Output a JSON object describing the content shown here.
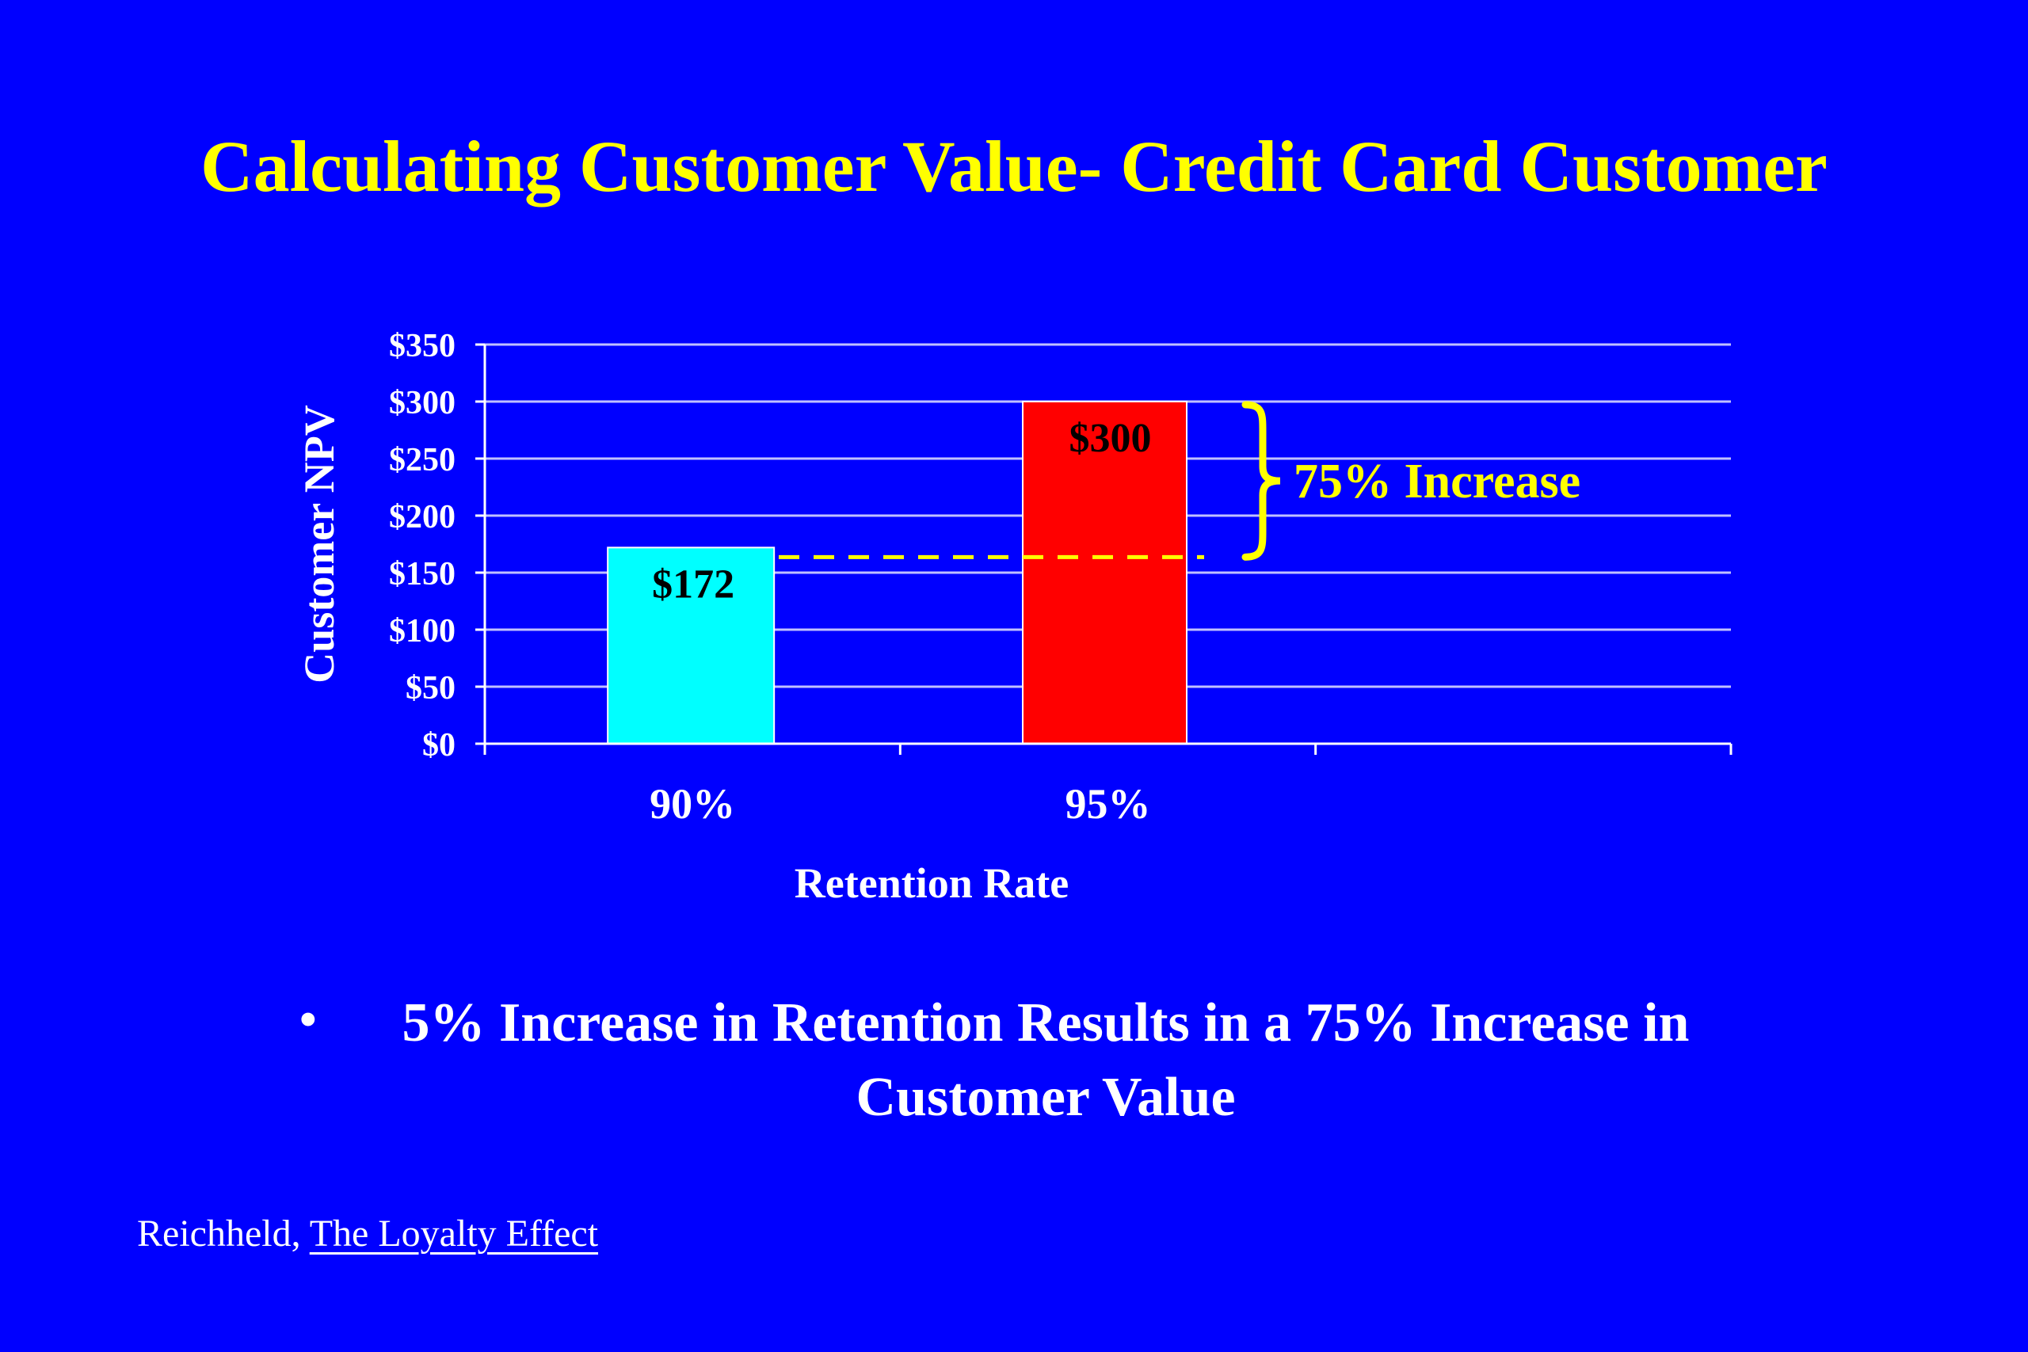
{
  "slide": {
    "title": "Calculating Customer Value- Credit Card Customer",
    "bullet_symbol": "•",
    "bullet_text": "5% Increase in Retention Results in a 75% Increase in Customer Value",
    "citation_author": "Reichheld, ",
    "citation_title": "The Loyalty Effect"
  },
  "colors": {
    "background": "#0000FF",
    "title": "#FFFF00",
    "text": "#FFFFFF",
    "gridline": "#C0C0FF",
    "annotation": "#FFFF00"
  },
  "chart_data": {
    "type": "bar",
    "title": "",
    "xlabel": "Retention Rate",
    "ylabel": "Customer NPV",
    "categories": [
      "90%",
      "95%",
      ""
    ],
    "values": [
      172,
      300,
      null
    ],
    "data_labels": [
      "$172",
      "$300",
      ""
    ],
    "bar_colors": [
      "#00FFFF",
      "#FF0000"
    ],
    "ylim": [
      0,
      350
    ],
    "yticks": [
      0,
      50,
      100,
      150,
      200,
      250,
      300,
      350
    ],
    "ytick_labels": [
      "$0",
      "$50",
      "$100",
      "$150",
      "$200",
      "$250",
      "$300",
      "$350"
    ],
    "grid": true,
    "legend": "none",
    "annotation": {
      "text": "75%  Increase",
      "from_value": 172,
      "to_value": 300
    }
  }
}
